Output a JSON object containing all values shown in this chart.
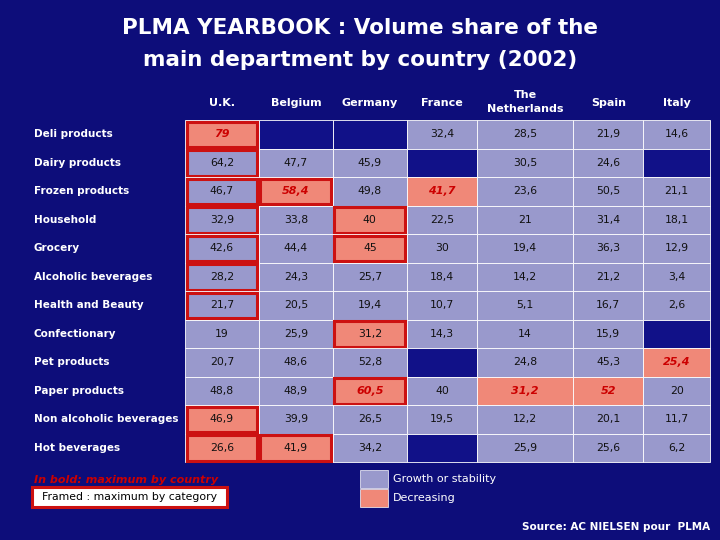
{
  "title_line1": "PLMA YEARBOOK : Volume share of the",
  "title_line2": "main department by country (2002)",
  "background_color": "#0d0d7a",
  "title_color": "#ffffff",
  "columns": [
    "U.K.",
    "Belgium",
    "Germany",
    "France",
    "The\nNetherlands",
    "Spain",
    "Italy"
  ],
  "rows": [
    "Deli products",
    "Dairy products",
    "Frozen products",
    "Household",
    "Grocery",
    "Alcoholic beverages",
    "Health and Beauty",
    "Confectionary",
    "Pet products",
    "Paper products",
    "Non alcoholic beverages",
    "Hot beverages"
  ],
  "values": [
    [
      "79",
      "",
      "",
      "32,4",
      "28,5",
      "21,9",
      "14,6"
    ],
    [
      "64,2",
      "47,7",
      "45,9",
      "",
      "30,5",
      "24,6",
      ""
    ],
    [
      "46,7",
      "58,4",
      "49,8",
      "41,7",
      "23,6",
      "50,5",
      "21,1"
    ],
    [
      "32,9",
      "33,8",
      "40",
      "22,5",
      "21",
      "31,4",
      "18,1"
    ],
    [
      "42,6",
      "44,4",
      "45",
      "30",
      "19,4",
      "36,3",
      "12,9"
    ],
    [
      "28,2",
      "24,3",
      "25,7",
      "18,4",
      "14,2",
      "21,2",
      "3,4"
    ],
    [
      "21,7",
      "20,5",
      "19,4",
      "10,7",
      "5,1",
      "16,7",
      "2,6"
    ],
    [
      "19",
      "25,9",
      "31,2",
      "14,3",
      "14",
      "15,9",
      ""
    ],
    [
      "20,7",
      "48,6",
      "52,8",
      "",
      "24,8",
      "45,3",
      "25,4"
    ],
    [
      "48,8",
      "48,9",
      "60,5",
      "40",
      "31,2",
      "52",
      "20"
    ],
    [
      "46,9",
      "39,9",
      "26,5",
      "19,5",
      "12,2",
      "20,1",
      "11,7"
    ],
    [
      "26,6",
      "41,9",
      "34,2",
      "",
      "25,9",
      "25,6",
      "6,2"
    ]
  ],
  "cell_colors": [
    [
      "salmon",
      "dark",
      "dark",
      "light",
      "light",
      "light",
      "light"
    ],
    [
      "light",
      "light",
      "light",
      "dark",
      "light",
      "light",
      "dark"
    ],
    [
      "light",
      "salmon",
      "light",
      "salmon",
      "light",
      "light",
      "light"
    ],
    [
      "light",
      "light",
      "salmon",
      "light",
      "light",
      "light",
      "light"
    ],
    [
      "light",
      "light",
      "salmon",
      "light",
      "light",
      "light",
      "light"
    ],
    [
      "light",
      "light",
      "light",
      "light",
      "light",
      "light",
      "light"
    ],
    [
      "light",
      "light",
      "light",
      "light",
      "light",
      "light",
      "light"
    ],
    [
      "light",
      "light",
      "salmon",
      "light",
      "light",
      "light",
      "dark"
    ],
    [
      "light",
      "light",
      "light",
      "dark",
      "light",
      "light",
      "salmon"
    ],
    [
      "light",
      "light",
      "salmon",
      "light",
      "salmon",
      "salmon",
      "light"
    ],
    [
      "salmon",
      "light",
      "light",
      "light",
      "light",
      "light",
      "light"
    ],
    [
      "salmon",
      "salmon",
      "light",
      "dark",
      "light",
      "light",
      "light"
    ]
  ],
  "bold_cells": [
    [
      true,
      false,
      false,
      false,
      false,
      false,
      false
    ],
    [
      false,
      false,
      false,
      false,
      false,
      false,
      false
    ],
    [
      false,
      true,
      false,
      true,
      false,
      false,
      false
    ],
    [
      false,
      false,
      false,
      false,
      false,
      false,
      false
    ],
    [
      false,
      false,
      false,
      false,
      false,
      false,
      false
    ],
    [
      false,
      false,
      false,
      false,
      false,
      false,
      false
    ],
    [
      false,
      false,
      false,
      false,
      false,
      false,
      false
    ],
    [
      false,
      false,
      false,
      false,
      false,
      false,
      false
    ],
    [
      false,
      false,
      false,
      false,
      false,
      false,
      true
    ],
    [
      false,
      false,
      true,
      false,
      true,
      true,
      false
    ],
    [
      false,
      false,
      false,
      false,
      false,
      false,
      false
    ],
    [
      false,
      false,
      false,
      false,
      false,
      false,
      false
    ]
  ],
  "framed_cells": [
    [
      true,
      false,
      false,
      false,
      false,
      false,
      false
    ],
    [
      true,
      false,
      false,
      false,
      false,
      false,
      false
    ],
    [
      true,
      true,
      false,
      false,
      false,
      false,
      false
    ],
    [
      true,
      false,
      true,
      false,
      false,
      false,
      false
    ],
    [
      true,
      false,
      true,
      false,
      false,
      false,
      false
    ],
    [
      true,
      false,
      false,
      false,
      false,
      false,
      false
    ],
    [
      true,
      false,
      false,
      false,
      false,
      false,
      false
    ],
    [
      false,
      false,
      true,
      false,
      false,
      false,
      false
    ],
    [
      false,
      false,
      false,
      false,
      false,
      false,
      false
    ],
    [
      false,
      false,
      true,
      false,
      false,
      false,
      false
    ],
    [
      true,
      false,
      false,
      false,
      false,
      false,
      false
    ],
    [
      true,
      true,
      false,
      false,
      false,
      false,
      false
    ]
  ],
  "color_light": "#9999cc",
  "color_salmon": "#f08878",
  "color_dark": "#111188",
  "color_frame": "#cc1111",
  "text_normal": "#111111",
  "text_bold_red": "#cc0000",
  "row_label_color": "#ffffff",
  "header_color": "#ffffff",
  "legend_bold_color": "#cc0000",
  "legend_text_color": "#ffffff"
}
